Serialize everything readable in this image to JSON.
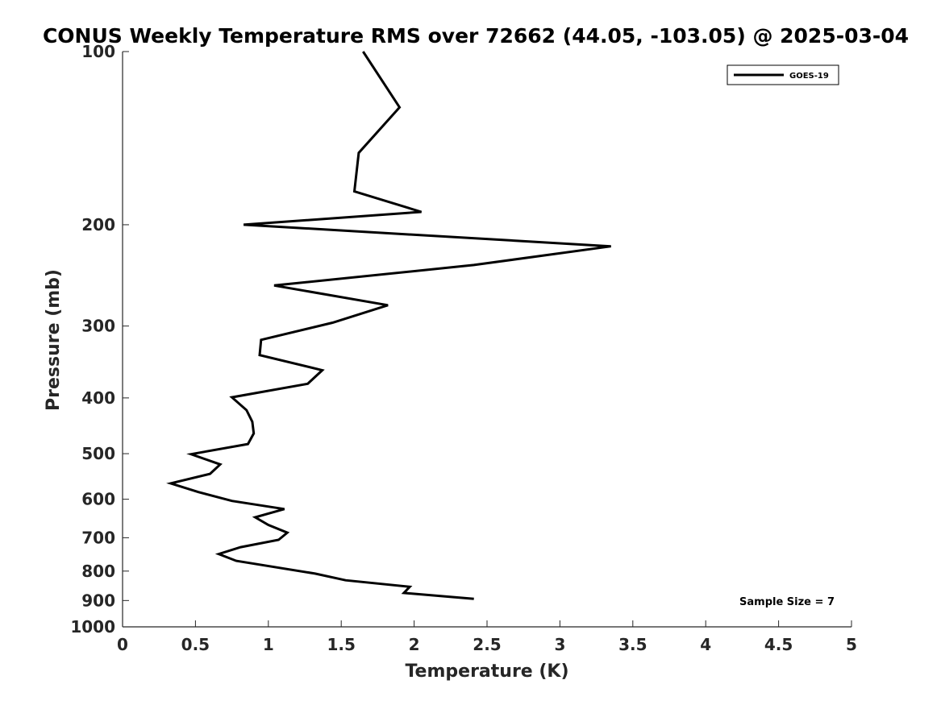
{
  "chart_data": {
    "type": "line",
    "title": "CONUS Weekly Temperature RMS over 72662 (44.05, -103.05) @ 2025-03-04",
    "xlabel": "Temperature (K)",
    "ylabel": "Pressure (mb)",
    "xlim": [
      0,
      5
    ],
    "ylim": [
      100,
      1000
    ],
    "yscale": "log",
    "yreversed": true,
    "x_ticks": [
      "0",
      "0.5",
      "1",
      "1.5",
      "2",
      "2.5",
      "3",
      "3.5",
      "4",
      "4.5",
      "5"
    ],
    "y_ticks": [
      "100",
      "200",
      "300",
      "400",
      "500",
      "600",
      "700",
      "800",
      "900",
      "1000"
    ],
    "grid": false,
    "legend_position": "top-right",
    "annotation": "Sample Size = 7",
    "series": [
      {
        "name": "GOES-19",
        "color": "#000000",
        "points": [
          {
            "x": 1.65,
            "y": 100
          },
          {
            "x": 1.9,
            "y": 125
          },
          {
            "x": 1.62,
            "y": 150
          },
          {
            "x": 1.59,
            "y": 175
          },
          {
            "x": 2.05,
            "y": 190
          },
          {
            "x": 0.83,
            "y": 200
          },
          {
            "x": 3.35,
            "y": 218
          },
          {
            "x": 2.41,
            "y": 235
          },
          {
            "x": 1.04,
            "y": 255
          },
          {
            "x": 1.82,
            "y": 276
          },
          {
            "x": 1.44,
            "y": 296
          },
          {
            "x": 0.95,
            "y": 317
          },
          {
            "x": 0.94,
            "y": 337
          },
          {
            "x": 1.37,
            "y": 358
          },
          {
            "x": 1.27,
            "y": 378
          },
          {
            "x": 0.75,
            "y": 399
          },
          {
            "x": 0.85,
            "y": 420
          },
          {
            "x": 0.89,
            "y": 440
          },
          {
            "x": 0.9,
            "y": 461
          },
          {
            "x": 0.86,
            "y": 481
          },
          {
            "x": 0.47,
            "y": 501
          },
          {
            "x": 0.67,
            "y": 522
          },
          {
            "x": 0.6,
            "y": 542
          },
          {
            "x": 0.33,
            "y": 563
          },
          {
            "x": 0.52,
            "y": 583
          },
          {
            "x": 0.75,
            "y": 604
          },
          {
            "x": 1.11,
            "y": 624
          },
          {
            "x": 0.91,
            "y": 645
          },
          {
            "x": 1.0,
            "y": 665
          },
          {
            "x": 1.13,
            "y": 686
          },
          {
            "x": 1.07,
            "y": 706
          },
          {
            "x": 0.81,
            "y": 727
          },
          {
            "x": 0.66,
            "y": 747
          },
          {
            "x": 0.78,
            "y": 768
          },
          {
            "x": 1.32,
            "y": 808
          },
          {
            "x": 1.53,
            "y": 830
          },
          {
            "x": 1.97,
            "y": 852
          },
          {
            "x": 1.93,
            "y": 873
          },
          {
            "x": 2.41,
            "y": 894
          }
        ]
      }
    ]
  }
}
